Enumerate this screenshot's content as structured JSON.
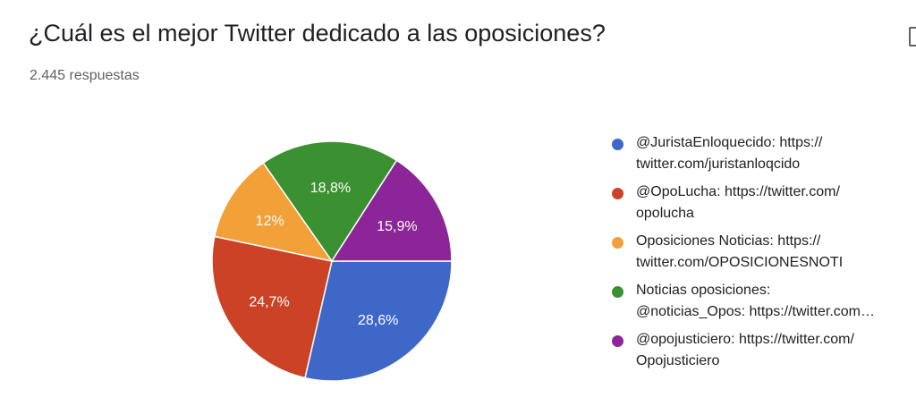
{
  "header": {
    "title": "¿Cuál es el mejor Twitter dedicado a las oposiciones?",
    "responses": "2.445 respuestas"
  },
  "icons": {
    "copy": "copy-icon"
  },
  "chart_data": {
    "type": "pie",
    "legend_position": "right",
    "slices": [
      {
        "label": "@JuristaEnloquecido: https://twitter.com/juristanloqcido",
        "legend_lines": [
          "@JuristaEnloquecido: https://",
          "twitter.com/juristanloqcido"
        ],
        "value": 28.6,
        "display": "28,6%",
        "color": "#3f67c8"
      },
      {
        "label": "@OpoLucha: https://twitter.com/opolucha",
        "legend_lines": [
          "@OpoLucha: https://twitter.com/",
          "opolucha"
        ],
        "value": 24.7,
        "display": "24,7%",
        "color": "#cc4226"
      },
      {
        "label": "Oposiciones Noticias: https://twitter.com/OPOSICIONESNOTI",
        "legend_lines": [
          "Oposiciones Noticias: https://",
          "twitter.com/OPOSICIONESNOTI"
        ],
        "value": 12,
        "display": "12%",
        "color": "#f2a038"
      },
      {
        "label": "Noticias oposiciones: @noticias_Opos: https://twitter.com…",
        "legend_lines": [
          "Noticias oposiciones:",
          "@noticias_Opos: https://twitter.com…"
        ],
        "value": 18.8,
        "display": "18,8%",
        "color": "#3b9131"
      },
      {
        "label": "@opojusticiero: https://twitter.com/Opojusticiero",
        "legend_lines": [
          "@opojusticiero: https://twitter.com/",
          "Opojusticiero"
        ],
        "value": 15.9,
        "display": "15,9%",
        "color": "#8c2597"
      }
    ]
  }
}
